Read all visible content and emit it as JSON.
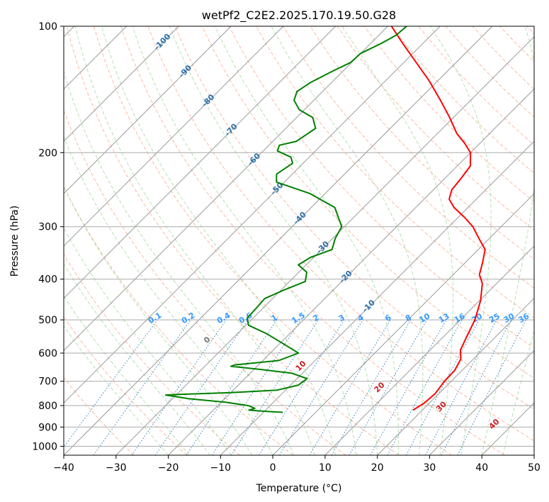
{
  "chart_data": {
    "type": "line",
    "subtype": "skew-t log-p diagram",
    "title": "wetPf2_C2E2.2025.170.19.50.G28",
    "xlabel": "Temperature (°C)",
    "ylabel": "Pressure (hPa)",
    "xlim": [
      -40,
      50
    ],
    "ylim": [
      1050,
      100
    ],
    "y_scale": "log",
    "x_ticks": [
      -40,
      -30,
      -20,
      -10,
      0,
      10,
      20,
      30,
      40,
      50
    ],
    "x_tick_labels": [
      "−40",
      "−30",
      "−20",
      "−10",
      "0",
      "10",
      "20",
      "30",
      "40",
      "50"
    ],
    "y_ticks": [
      100,
      200,
      300,
      400,
      500,
      600,
      700,
      800,
      900,
      1000
    ],
    "y_tick_labels": [
      "100",
      "200",
      "300",
      "400",
      "500",
      "600",
      "700",
      "800",
      "900",
      "1000"
    ],
    "grid": true,
    "colors": {
      "temperature": "#ff0000",
      "dewpoint": "#008000",
      "isotherm": "#999999",
      "dry_adiabat": "#fcae91",
      "moist_adiabat": "#a1d99b",
      "mixing_ratio": "#3182bd",
      "isotherm_label": "#2b6fa8",
      "mixing_ratio_label": "#3399ff",
      "moist_label": "#cc2222",
      "zero_label": "#777777"
    },
    "series": [
      {
        "name": "temperature",
        "points": [
          {
            "p": 820,
            "t": 18.2
          },
          {
            "p": 790,
            "t": 19.0
          },
          {
            "p": 750,
            "t": 19.3
          },
          {
            "p": 700,
            "t": 18.7
          },
          {
            "p": 660,
            "t": 18.6
          },
          {
            "p": 620,
            "t": 17.6
          },
          {
            "p": 590,
            "t": 15.8
          },
          {
            "p": 550,
            "t": 14.5
          },
          {
            "p": 500,
            "t": 12.8
          },
          {
            "p": 450,
            "t": 10.2
          },
          {
            "p": 410,
            "t": 7.3
          },
          {
            "p": 390,
            "t": 5.0
          },
          {
            "p": 365,
            "t": 3.3
          },
          {
            "p": 340,
            "t": 1.3
          },
          {
            "p": 320,
            "t": -2.0
          },
          {
            "p": 300,
            "t": -5.4
          },
          {
            "p": 285,
            "t": -8.8
          },
          {
            "p": 270,
            "t": -12.7
          },
          {
            "p": 258,
            "t": -15.2
          },
          {
            "p": 245,
            "t": -16.5
          },
          {
            "p": 230,
            "t": -16.9
          },
          {
            "p": 215,
            "t": -17.5
          },
          {
            "p": 200,
            "t": -20.0
          },
          {
            "p": 190,
            "t": -22.9
          },
          {
            "p": 180,
            "t": -26.3
          },
          {
            "p": 165,
            "t": -30.7
          },
          {
            "p": 150,
            "t": -35.8
          },
          {
            "p": 135,
            "t": -41.6
          },
          {
            "p": 120,
            "t": -48.6
          },
          {
            "p": 110,
            "t": -53.8
          },
          {
            "p": 100,
            "t": -59.3
          }
        ]
      },
      {
        "name": "dewpoint",
        "points": [
          {
            "p": 830,
            "t": -6.3
          },
          {
            "p": 825,
            "t": -10.4
          },
          {
            "p": 820,
            "t": -13.2
          },
          {
            "p": 812,
            "t": -12.4
          },
          {
            "p": 800,
            "t": -14.2
          },
          {
            "p": 785,
            "t": -19.2
          },
          {
            "p": 770,
            "t": -27.0
          },
          {
            "p": 755,
            "t": -32.0
          },
          {
            "p": 752,
            "t": -29.0
          },
          {
            "p": 745,
            "t": -20.0
          },
          {
            "p": 735,
            "t": -11.6
          },
          {
            "p": 715,
            "t": -8.5
          },
          {
            "p": 690,
            "t": -8.1
          },
          {
            "p": 670,
            "t": -12.0
          },
          {
            "p": 655,
            "t": -19.3
          },
          {
            "p": 645,
            "t": -25.0
          },
          {
            "p": 640,
            "t": -24.5
          },
          {
            "p": 625,
            "t": -17.0
          },
          {
            "p": 600,
            "t": -14.6
          },
          {
            "p": 570,
            "t": -19.3
          },
          {
            "p": 540,
            "t": -24.3
          },
          {
            "p": 515,
            "t": -29.5
          },
          {
            "p": 495,
            "t": -31.1
          },
          {
            "p": 480,
            "t": -31.2
          },
          {
            "p": 465,
            "t": -31.3
          },
          {
            "p": 445,
            "t": -31.5
          },
          {
            "p": 425,
            "t": -29.5
          },
          {
            "p": 405,
            "t": -27.0
          },
          {
            "p": 385,
            "t": -28.5
          },
          {
            "p": 370,
            "t": -31.5
          },
          {
            "p": 355,
            "t": -30.6
          },
          {
            "p": 340,
            "t": -28.0
          },
          {
            "p": 320,
            "t": -29.5
          },
          {
            "p": 300,
            "t": -30.5
          },
          {
            "p": 270,
            "t": -35.5
          },
          {
            "p": 250,
            "t": -43.0
          },
          {
            "p": 235,
            "t": -51.5
          },
          {
            "p": 225,
            "t": -53.0
          },
          {
            "p": 212,
            "t": -52.0
          },
          {
            "p": 205,
            "t": -53.5
          },
          {
            "p": 198,
            "t": -57.3
          },
          {
            "p": 192,
            "t": -58.0
          },
          {
            "p": 188,
            "t": -55.5
          },
          {
            "p": 175,
            "t": -54.3
          },
          {
            "p": 165,
            "t": -56.9
          },
          {
            "p": 158,
            "t": -61.0
          },
          {
            "p": 150,
            "t": -63.8
          },
          {
            "p": 143,
            "t": -64.9
          },
          {
            "p": 136,
            "t": -64.0
          },
          {
            "p": 128,
            "t": -62.0
          },
          {
            "p": 122,
            "t": -60.2
          },
          {
            "p": 116,
            "t": -60.0
          },
          {
            "p": 110,
            "t": -58.0
          },
          {
            "p": 105,
            "t": -56.7
          },
          {
            "p": 100,
            "t": -56.4
          }
        ]
      }
    ],
    "isotherm_labels": [
      {
        "text": "-100",
        "value": -100
      },
      {
        "text": "-90",
        "value": -90
      },
      {
        "text": "-80",
        "value": -80
      },
      {
        "text": "-70",
        "value": -70
      },
      {
        "text": "-60",
        "value": -60
      },
      {
        "text": "-50",
        "value": -50
      },
      {
        "text": "-40",
        "value": -40
      },
      {
        "text": "-30",
        "value": -30
      },
      {
        "text": "-20",
        "value": -20
      },
      {
        "text": "-10",
        "value": -10
      }
    ],
    "mixing_ratio_lines": [
      {
        "text": "0.1",
        "value": 0.1
      },
      {
        "text": "0.2",
        "value": 0.2
      },
      {
        "text": "0.4",
        "value": 0.4
      },
      {
        "text": "0.6",
        "value": 0.6
      },
      {
        "text": "1",
        "value": 1
      },
      {
        "text": "1.5",
        "value": 1.5
      },
      {
        "text": "2",
        "value": 2
      },
      {
        "text": "3",
        "value": 3
      },
      {
        "text": "4",
        "value": 4
      },
      {
        "text": "6",
        "value": 6
      },
      {
        "text": "8",
        "value": 8
      },
      {
        "text": "10",
        "value": 10
      },
      {
        "text": "13",
        "value": 13
      },
      {
        "text": "16",
        "value": 16
      },
      {
        "text": "20",
        "value": 20
      },
      {
        "text": "25",
        "value": 25
      },
      {
        "text": "30",
        "value": 30
      },
      {
        "text": "36",
        "value": 36
      }
    ],
    "moist_adiabat_labels": [
      {
        "text": "0",
        "value": 0
      },
      {
        "text": "10",
        "value": 10
      },
      {
        "text": "20",
        "value": 20
      },
      {
        "text": "30",
        "value": 30
      },
      {
        "text": "40",
        "value": 40
      }
    ]
  }
}
